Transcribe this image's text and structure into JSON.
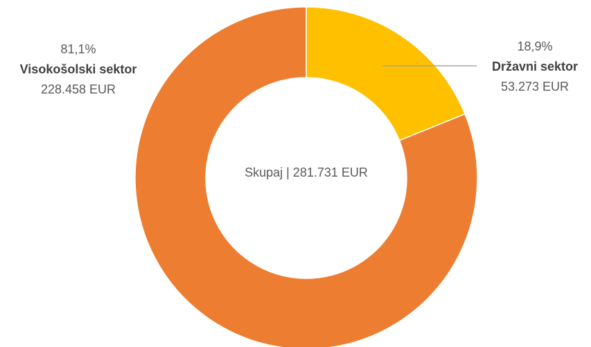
{
  "chart_data": {
    "type": "donut",
    "categories": [
      "Državni sektor",
      "Visokošolski sektor"
    ],
    "values": [
      18.9,
      81.1
    ],
    "value_labels": [
      "18,9%",
      "81,1%"
    ],
    "amounts": [
      53273,
      228458
    ],
    "amount_labels": [
      "53.273 EUR",
      "228.458 EUR"
    ],
    "colors": [
      "#ffc000",
      "#ed7d31"
    ],
    "center_label": "Skupaj | 281.731 EUR"
  }
}
